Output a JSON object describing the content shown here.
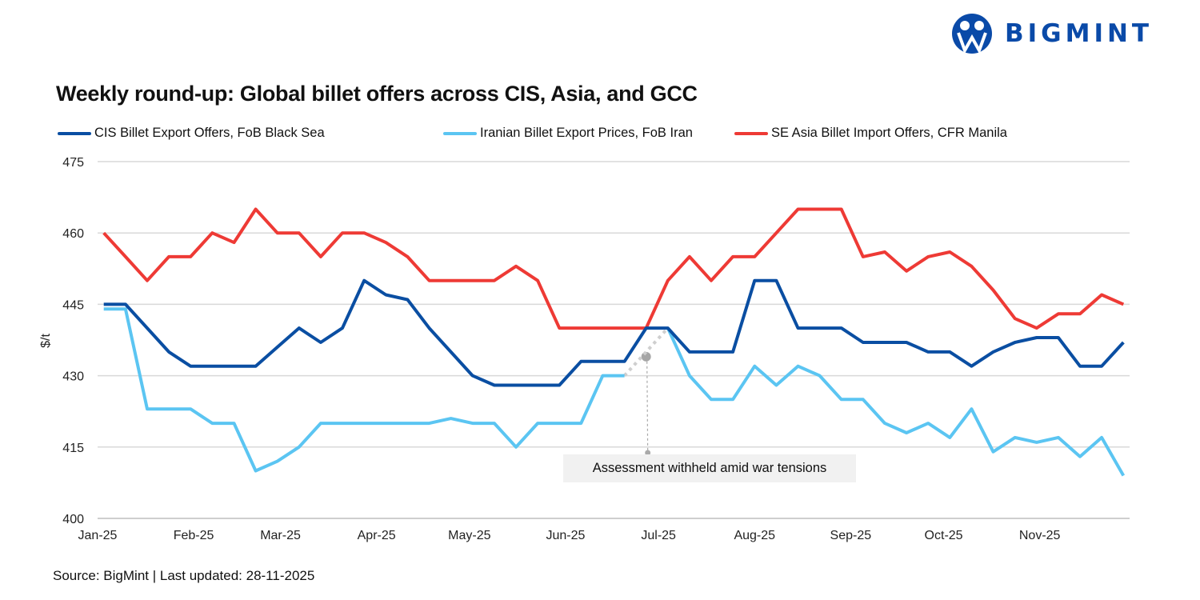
{
  "logo": {
    "text": "BIGMINT",
    "color": "#0a4aa8"
  },
  "chart_data": {
    "type": "line",
    "title": "Weekly round-up: Global billet offers across CIS, Asia, and GCC",
    "xlabel": "",
    "ylabel": "$/t",
    "ylim": [
      400,
      475
    ],
    "yticks": [
      400,
      415,
      430,
      445,
      460,
      475
    ],
    "xlim": [
      "2025-01-01",
      "2025-11-30"
    ],
    "xtick_labels": [
      "Jan-25",
      "Feb-25",
      "Mar-25",
      "Apr-25",
      "May-25",
      "Jun-25",
      "Jul-25",
      "Aug-25",
      "Sep-25",
      "Oct-25",
      "Nov-25"
    ],
    "xtick_dates": [
      "2025-01-01",
      "2025-02-01",
      "2025-03-01",
      "2025-04-01",
      "2025-05-01",
      "2025-06-01",
      "2025-07-01",
      "2025-08-01",
      "2025-09-01",
      "2025-10-01",
      "2025-11-01"
    ],
    "grid": true,
    "legend_position": "top",
    "x": [
      "2025-01-03",
      "2025-01-10",
      "2025-01-17",
      "2025-01-24",
      "2025-01-31",
      "2025-02-07",
      "2025-02-14",
      "2025-02-21",
      "2025-02-28",
      "2025-03-07",
      "2025-03-14",
      "2025-03-21",
      "2025-03-28",
      "2025-04-04",
      "2025-04-11",
      "2025-04-18",
      "2025-04-25",
      "2025-05-02",
      "2025-05-09",
      "2025-05-16",
      "2025-05-23",
      "2025-05-30",
      "2025-06-06",
      "2025-06-13",
      "2025-06-20",
      "2025-06-27",
      "2025-07-04",
      "2025-07-11",
      "2025-07-18",
      "2025-07-25",
      "2025-08-01",
      "2025-08-08",
      "2025-08-15",
      "2025-08-22",
      "2025-08-29",
      "2025-09-05",
      "2025-09-12",
      "2025-09-19",
      "2025-09-26",
      "2025-10-03",
      "2025-10-10",
      "2025-10-17",
      "2025-10-24",
      "2025-10-31",
      "2025-11-07",
      "2025-11-14",
      "2025-11-21",
      "2025-11-28"
    ],
    "series": [
      {
        "name": "CIS Billet Export Offers, FoB Black Sea",
        "color": "#0a4ea2",
        "values": [
          445,
          445,
          440,
          435,
          432,
          432,
          432,
          432,
          436,
          440,
          437,
          440,
          450,
          447,
          446,
          440,
          435,
          430,
          428,
          428,
          428,
          428,
          433,
          433,
          433,
          440,
          440,
          435,
          435,
          435,
          450,
          450,
          440,
          440,
          440,
          437,
          437,
          437,
          435,
          435,
          432,
          435,
          437,
          438,
          438,
          432,
          432,
          437
        ]
      },
      {
        "name": "Iranian Billet Export Prices, FoB Iran",
        "color": "#5bc5f2",
        "values": [
          444,
          444,
          423,
          423,
          423,
          420,
          420,
          410,
          412,
          415,
          420,
          420,
          420,
          420,
          420,
          420,
          421,
          420,
          420,
          415,
          420,
          420,
          420,
          430,
          430,
          null,
          440,
          430,
          425,
          425,
          432,
          428,
          432,
          430,
          425,
          425,
          420,
          418,
          420,
          417,
          423,
          414,
          417,
          416,
          417,
          413,
          417,
          409
        ]
      },
      {
        "name": "SE Asia Billet Import Offers, CFR Manila",
        "color": "#ee3a35",
        "values": [
          460,
          455,
          450,
          455,
          455,
          460,
          458,
          465,
          460,
          460,
          455,
          460,
          460,
          458,
          455,
          450,
          450,
          450,
          450,
          453,
          450,
          440,
          440,
          440,
          440,
          440,
          450,
          455,
          450,
          455,
          455,
          460,
          465,
          465,
          465,
          455,
          456,
          452,
          455,
          456,
          453,
          448,
          442,
          440,
          443,
          443,
          447,
          445
        ]
      }
    ],
    "annotations": [
      {
        "text": "Assessment withheld amid  war tensions",
        "x": "2025-06-27",
        "y": 434
      }
    ]
  },
  "source": "Source: BigMint | Last updated: 28-11-2025"
}
